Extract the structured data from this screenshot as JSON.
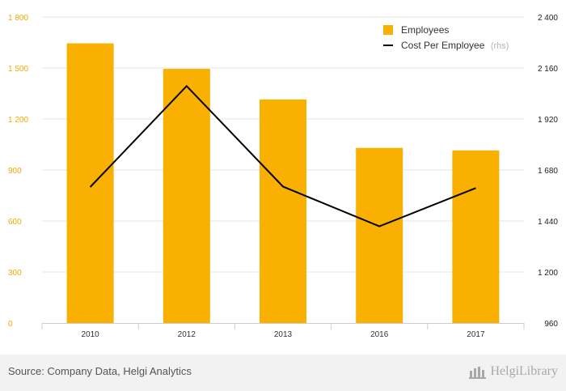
{
  "chart_data": {
    "type": "bar+line",
    "categories": [
      "2010",
      "2012",
      "2013",
      "2016",
      "2017"
    ],
    "series": [
      {
        "name": "Employees",
        "type": "bar",
        "axis": "left",
        "color": "#f9b000",
        "values": [
          1645,
          1495,
          1315,
          1030,
          1015
        ]
      },
      {
        "name": "Cost Per Employee",
        "suffix": "(rhs)",
        "type": "line",
        "axis": "right",
        "color": "#000000",
        "values": [
          1600,
          2075,
          1602,
          1415,
          1595
        ]
      }
    ],
    "y_left": {
      "range": [
        0,
        1800
      ],
      "ticks": [
        0,
        300,
        600,
        900,
        1200,
        1500,
        1800
      ],
      "tick_labels": [
        "0",
        "300",
        "600",
        "900",
        "1 200",
        "1 500",
        "1 800"
      ]
    },
    "y_right": {
      "range": [
        960,
        2400
      ],
      "ticks": [
        960,
        1200,
        1440,
        1680,
        1920,
        2160,
        2400
      ],
      "tick_labels": [
        "960",
        "1 200",
        "1 440",
        "1 680",
        "1 920",
        "2 160",
        "2 400"
      ]
    },
    "grid": true,
    "legend": "top-right",
    "title": "",
    "xlabel": "",
    "ylabel": ""
  },
  "footer": {
    "source": "Source: Company Data, Helgi Analytics",
    "brand": "HelgiLibrary"
  }
}
